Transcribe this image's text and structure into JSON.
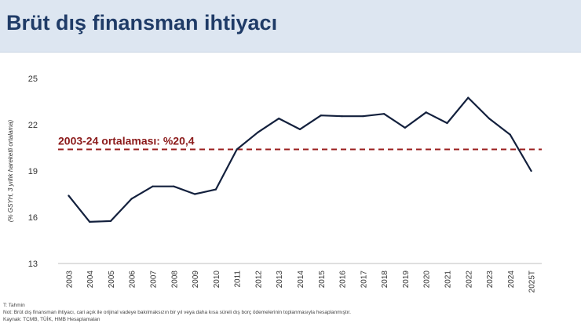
{
  "title": "Brüt dış finansman ihtiyacı",
  "footnotes": {
    "estimate": "T: Tahmin",
    "note": "Not: Brüt dış finansman ihtiyacı, cari açık ile orijinal vadeye bakılmaksızın bir yıl veya daha kısa süreli dış borç ödemelerinin toplanmasıyla hesaplanmıştır.",
    "source": "Kaynak: TCMB, TÜİK, HMB Hesaplamaları"
  },
  "chart_data": {
    "type": "line",
    "ylabel": "(% GSYH, 3 yıllık hareketli ortalama)",
    "xlabel": "",
    "ylim": [
      13,
      25
    ],
    "yticks": [
      13,
      16,
      19,
      22,
      25
    ],
    "grid": false,
    "categories": [
      "2003",
      "2004",
      "2005",
      "2006",
      "2007",
      "2008",
      "2009",
      "2010",
      "2011",
      "2012",
      "2013",
      "2014",
      "2015",
      "2016",
      "2017",
      "2018",
      "2019",
      "2020",
      "2021",
      "2022",
      "2023",
      "2024",
      "2025T"
    ],
    "series": [
      {
        "name": "",
        "color": "#13203d",
        "values": [
          17.4,
          15.7,
          15.75,
          17.2,
          18.0,
          18.0,
          17.5,
          17.8,
          20.4,
          21.5,
          22.4,
          21.7,
          22.6,
          22.55,
          22.55,
          22.7,
          21.8,
          22.8,
          22.1,
          23.75,
          22.4,
          21.35,
          19.0
        ]
      }
    ],
    "reference_line": {
      "value": 20.4,
      "label": "2003-24 ortalaması: %20,4",
      "color": "#9a1c1c"
    }
  }
}
